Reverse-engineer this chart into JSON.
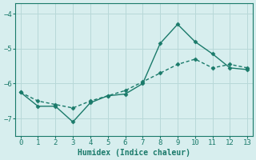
{
  "title": "",
  "xlabel": "Humidex (Indice chaleur)",
  "ylabel": "",
  "background_color": "#d7eeee",
  "line_color": "#1a7a6a",
  "grid_color": "#b8d8d8",
  "x": [
    0,
    1,
    2,
    3,
    4,
    5,
    6,
    7,
    8,
    9,
    10,
    11,
    12,
    13
  ],
  "y_jagged": [
    -6.25,
    -6.65,
    -6.65,
    -7.1,
    -6.55,
    -6.35,
    -6.3,
    -6.0,
    -4.85,
    -4.3,
    -4.8,
    -5.15,
    -5.55,
    -5.6
  ],
  "y_smooth": [
    -6.25,
    -6.5,
    -6.6,
    -6.7,
    -6.5,
    -6.35,
    -6.2,
    -5.95,
    -5.7,
    -5.45,
    -5.3,
    -5.55,
    -5.45,
    -5.55
  ],
  "xlim": [
    -0.3,
    13.3
  ],
  "ylim": [
    -7.5,
    -3.7
  ],
  "yticks": [
    -7,
    -6,
    -5,
    -4
  ],
  "xticks": [
    0,
    1,
    2,
    3,
    4,
    5,
    6,
    7,
    8,
    9,
    10,
    11,
    12,
    13
  ],
  "marker": "D",
  "markersize": 2.5,
  "linewidth": 1.0
}
